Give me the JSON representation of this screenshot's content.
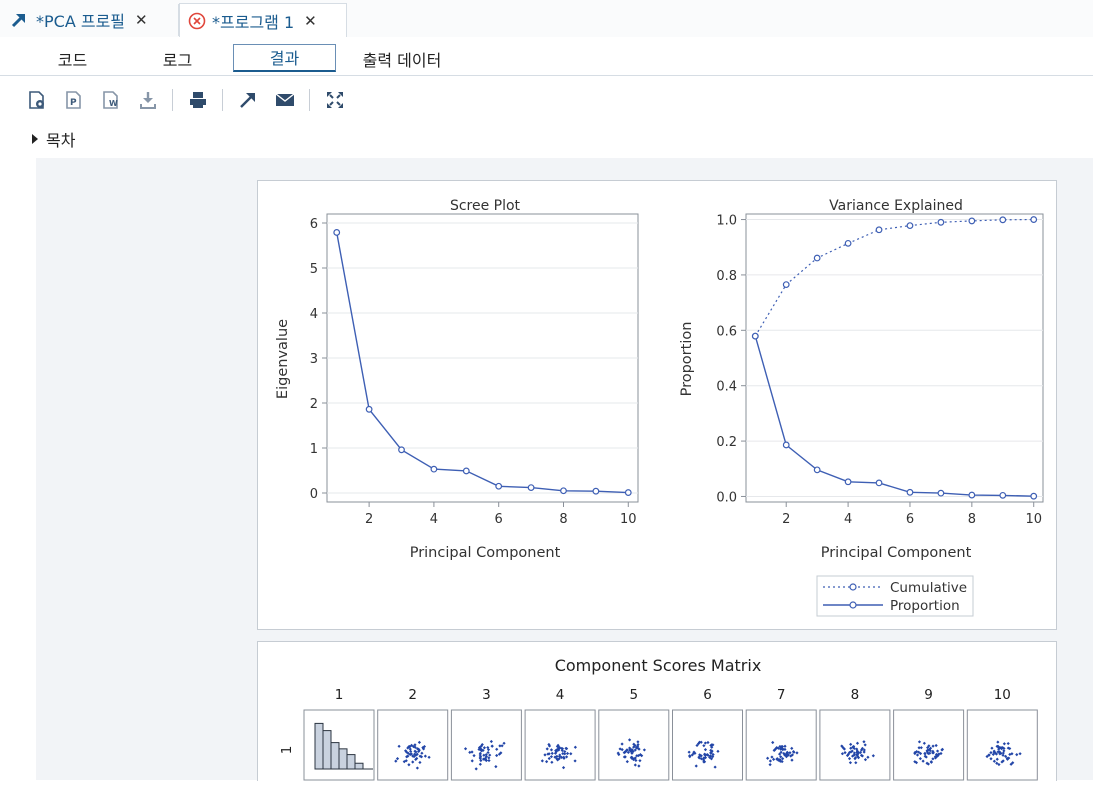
{
  "document_tabs": [
    {
      "label": "*PCA 프로필",
      "icon": "program-arrow-icon",
      "active": false
    },
    {
      "label": "*프로그램 1",
      "icon": "error-circle-icon",
      "active": true
    }
  ],
  "sub_tabs": [
    "코드",
    "로그",
    "결과",
    "출력 데이터"
  ],
  "active_sub_tab": "결과",
  "toolbar_icons": [
    "html-download-icon",
    "pdf-download-icon",
    "rtf-download-icon",
    "download-icon",
    "print-icon",
    "open-in-new-window-icon",
    "email-icon",
    "fullscreen-icon"
  ],
  "toc_label": "목차",
  "colors": {
    "series": "#3e5fb4",
    "panel_border": "#c6ccd3",
    "accent": "#1b5c8f"
  },
  "chart_data": [
    {
      "type": "line",
      "title": "Scree Plot",
      "xlabel": "Principal Component",
      "ylabel": "Eigenvalue",
      "x": [
        1,
        2,
        3,
        4,
        5,
        6,
        7,
        8,
        9,
        10
      ],
      "series": [
        {
          "values": [
            5.79,
            1.86,
            0.96,
            0.53,
            0.49,
            0.15,
            0.12,
            0.05,
            0.04,
            0.01
          ]
        }
      ],
      "xlim": [
        0.7,
        10.3
      ],
      "ylim": [
        -0.2,
        6.2
      ],
      "xticks": [
        "2",
        "4",
        "6",
        "8",
        "10"
      ],
      "yticks": [
        "0",
        "1",
        "2",
        "3",
        "4",
        "5",
        "6"
      ],
      "grid": true
    },
    {
      "type": "line",
      "title": "Variance Explained",
      "xlabel": "Principal Component",
      "ylabel": "Proportion",
      "x": [
        1,
        2,
        3,
        4,
        5,
        6,
        7,
        8,
        9,
        10
      ],
      "series": [
        {
          "name": "Cumulative",
          "style": "dotted",
          "values": [
            0.579,
            0.765,
            0.861,
            0.914,
            0.963,
            0.978,
            0.99,
            0.995,
            0.999,
            1.0
          ]
        },
        {
          "name": "Proportion",
          "style": "solid",
          "values": [
            0.579,
            0.186,
            0.096,
            0.053,
            0.049,
            0.015,
            0.012,
            0.005,
            0.004,
            0.001
          ]
        }
      ],
      "xlim": [
        0.7,
        10.3
      ],
      "ylim": [
        -0.02,
        1.02
      ],
      "xticks": [
        "2",
        "4",
        "6",
        "8",
        "10"
      ],
      "yticks": [
        "0.0",
        "0.2",
        "0.4",
        "0.6",
        "0.8",
        "1.0"
      ],
      "legend": "bottom",
      "grid": true
    },
    {
      "type": "scatter",
      "title": "Component Scores Matrix",
      "column_labels": [
        "1",
        "2",
        "3",
        "4",
        "5",
        "6",
        "7",
        "8",
        "9",
        "10"
      ],
      "row_labels": [
        "1"
      ],
      "diagonal": "histogram",
      "histogram_relative_heights": [
        0.95,
        0.8,
        0.55,
        0.42,
        0.3,
        0.12
      ]
    }
  ]
}
